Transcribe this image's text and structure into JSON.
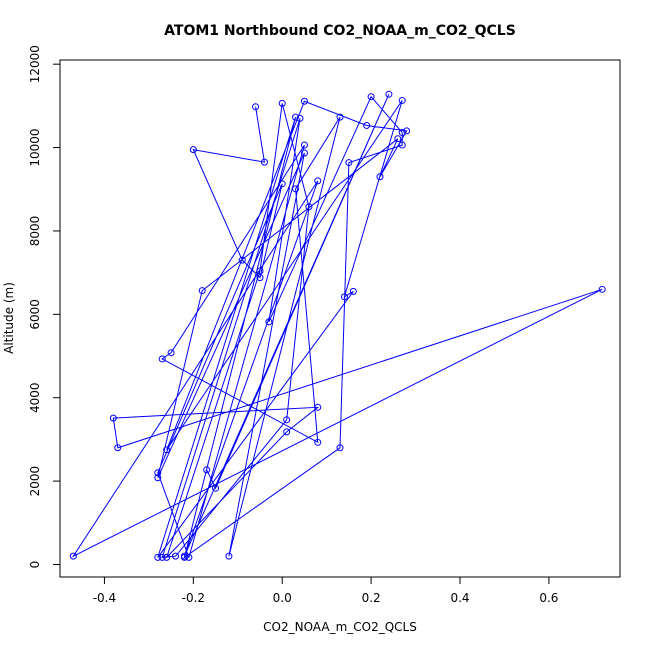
{
  "chart_data": {
    "type": "line",
    "title": "ATOM1 Northbound CO2_NOAA_m_CO2_QCLS",
    "xlabel": "CO2_NOAA_m_CO2_QCLS",
    "ylabel": "Altitude (m)",
    "xlim": [
      -0.5,
      0.76
    ],
    "ylim": [
      -300,
      12100
    ],
    "x_ticks": [
      -0.4,
      -0.2,
      0.0,
      0.2,
      0.4,
      0.6
    ],
    "x_tick_labels": [
      "-0.4",
      "-0.2",
      "0.0",
      "0.2",
      "0.4",
      "0.6"
    ],
    "y_ticks": [
      0,
      2000,
      4000,
      6000,
      8000,
      10000,
      12000
    ],
    "y_tick_labels": [
      "0",
      "2000",
      "4000",
      "6000",
      "8000",
      "10000",
      "12000"
    ],
    "grid": false,
    "legend": "none",
    "color": "#0000ff",
    "series": [
      {
        "x": [
          -0.06,
          -0.04,
          -0.2,
          -0.09,
          -0.05,
          0.0,
          -0.28,
          -0.21,
          0.05,
          -0.25,
          -0.27,
          0.08,
          0.03,
          0.13,
          -0.12,
          0.05,
          -0.28,
          -0.18,
          0.26,
          0.22,
          0.28,
          0.19,
          0.05,
          -0.26,
          0.27,
          0.14,
          0.16,
          -0.28,
          0.03,
          -0.22,
          0.13,
          0.15,
          0.27,
          0.27,
          0.2,
          -0.03,
          0.04,
          -0.27,
          -0.24,
          0.01,
          0.06,
          0.0,
          -0.05,
          -0.26,
          0.01,
          0.08,
          -0.38,
          -0.37,
          0.72,
          -0.47,
          0.08,
          -0.22,
          0.24,
          -0.15,
          -0.17
        ],
        "y": [
          10980,
          9650,
          9950,
          7300,
          6880,
          9130,
          2200,
          170,
          10060,
          5080,
          4930,
          2930,
          9010,
          10730,
          200,
          9870,
          2080,
          6570,
          10210,
          9300,
          10400,
          10530,
          11110,
          2750,
          11130,
          6420,
          6550,
          170,
          10730,
          170,
          2800,
          9640,
          10060,
          10360,
          11220,
          5820,
          10700,
          170,
          200,
          3470,
          8580,
          11060,
          7040,
          170,
          3180,
          3770,
          3510,
          2800,
          6600,
          200,
          9200,
          200,
          11280,
          1830,
          2270
        ]
      }
    ]
  }
}
